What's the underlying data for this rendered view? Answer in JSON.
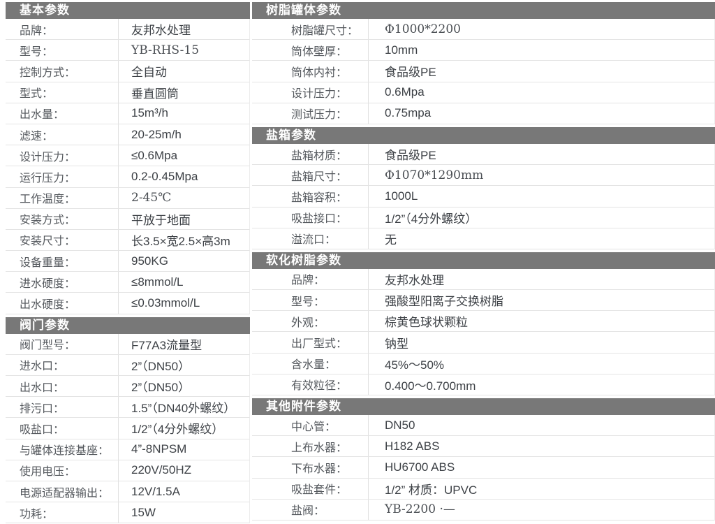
{
  "palette": {
    "header_bg": "#787878",
    "header_text": "#ffffff",
    "label_text": "#55595e",
    "value_text": "#3d4146",
    "row_divider": "#e4e4e4",
    "page_bg": "#ffffff"
  },
  "left_sections": [
    {
      "title": "基本参数",
      "rows": [
        {
          "label": "品牌：",
          "value": "友邦水处理"
        },
        {
          "label": "型号：",
          "value": "YB-RHS-15",
          "serif": true
        },
        {
          "label": "控制方式：",
          "value": "全自动"
        },
        {
          "label": "型式：",
          "value": "垂直圆筒"
        },
        {
          "label": "出水量：",
          "value": "15m³/h"
        },
        {
          "label": "滤速：",
          "value": "20-25m/h"
        },
        {
          "label": "设计压力：",
          "value": "≤0.6Mpa"
        },
        {
          "label": "运行压力：",
          "value": "0.2-0.45Mpa"
        },
        {
          "label": "工作温度：",
          "value": "2-45℃",
          "serif": true
        },
        {
          "label": "安装方式：",
          "value": "平放于地面"
        },
        {
          "label": "安装尺寸：",
          "value": "长3.5×宽2.5×高3m"
        },
        {
          "label": "设备重量：",
          "value": "950KG"
        },
        {
          "label": "进水硬度：",
          "value": "≤8mmol/L"
        },
        {
          "label": "出水硬度：",
          "value": "≤0.03mmol/L"
        }
      ]
    },
    {
      "title": "阀门参数",
      "rows": [
        {
          "label": "阀门型号：",
          "value": "F77A3流量型"
        },
        {
          "label": "进水口：",
          "value": "2”（DN50）"
        },
        {
          "label": "出水口：",
          "value": "2”（DN50）"
        },
        {
          "label": "排污口：",
          "value": "1.5”（DN40外螺纹）"
        },
        {
          "label": "吸盐口：",
          "value": "1/2”（4分外螺纹）"
        },
        {
          "label": "与罐体连接基座：",
          "value": "4”-8NPSM"
        },
        {
          "label": "使用电压：",
          "value": "220V/50HZ"
        },
        {
          "label": "电源适配器输出：",
          "value": "12V/1.5A"
        },
        {
          "label": "功耗：",
          "value": "15W"
        }
      ]
    }
  ],
  "right_sections": [
    {
      "title": "树脂罐体参数",
      "rows": [
        {
          "label": "树脂罐尺寸：",
          "value": "Φ1000*2200",
          "serif": true
        },
        {
          "label": "筒体壁厚：",
          "value": "10mm"
        },
        {
          "label": "筒体内衬：",
          "value": "食品级PE"
        },
        {
          "label": "设计压力：",
          "value": "0.6Mpa"
        },
        {
          "label": "测试压力：",
          "value": "0.75mpa"
        }
      ]
    },
    {
      "title": "盐箱参数",
      "rows": [
        {
          "label": "盐箱材质：",
          "value": "食品级PE"
        },
        {
          "label": "盐箱尺寸：",
          "value": "Φ1070*1290mm",
          "serif": true
        },
        {
          "label": "盐箱容积：",
          "value": "1000L"
        },
        {
          "label": "吸盐接口：",
          "value": "1/2”（4分外螺纹）"
        },
        {
          "label": "溢流口：",
          "value": "无"
        }
      ]
    },
    {
      "title": "软化树脂参数",
      "rows": [
        {
          "label": "品牌：",
          "value": "友邦水处理"
        },
        {
          "label": "型号：",
          "value": "强酸型阳离子交换树脂"
        },
        {
          "label": "外观：",
          "value": "棕黄色球状颗粒"
        },
        {
          "label": "出厂型式：",
          "value": "钠型"
        },
        {
          "label": "含水量：",
          "value": "45%～50%"
        },
        {
          "label": "有效粒径：",
          "value": "0.400～0.700mm"
        }
      ]
    },
    {
      "title": "其他附件参数",
      "rows": [
        {
          "label": "中心管：",
          "value": "DN50"
        },
        {
          "label": "上布水器：",
          "value": "H182  ABS"
        },
        {
          "label": "下布水器：",
          "value": "HU6700  ABS"
        },
        {
          "label": "吸盐套件：",
          "value": "1/2” 材质：UPVC"
        },
        {
          "label": "盐阀：",
          "value": "YB-2200  ·—",
          "serif": true
        }
      ]
    }
  ]
}
